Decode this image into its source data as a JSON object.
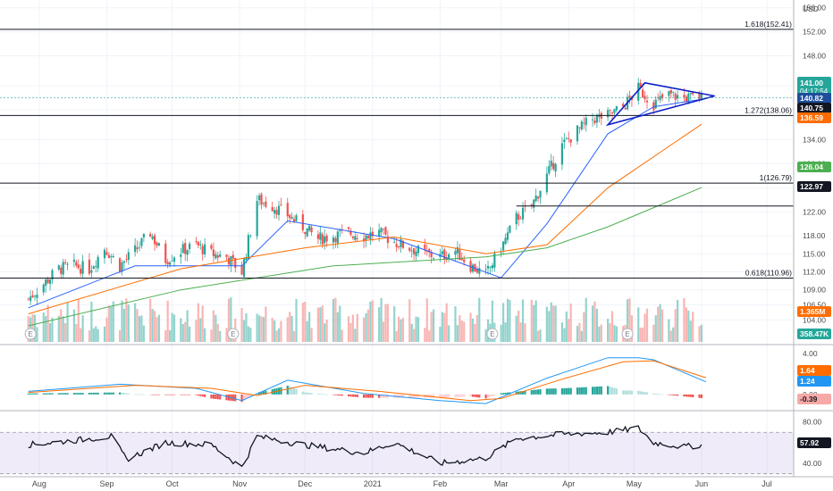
{
  "chart_data": [
    {
      "type": "candlestick",
      "panel": "price",
      "currency": "USD",
      "yaxis_ticks": [
        156.0,
        152.0,
        148.0,
        143.0,
        139.0,
        134.0,
        130.0,
        126.0,
        122.0,
        118.0,
        115.0,
        112.0,
        109.0,
        106.5,
        104.0
      ],
      "ylim": [
        103.0,
        157.0
      ],
      "xaxis_ticks": [
        "Aug",
        "Sep",
        "Oct",
        "Nov",
        "Dec",
        "2021",
        "Feb",
        "Mar",
        "Apr",
        "May",
        "Jun",
        "Jul"
      ],
      "close_path": [
        [
          "2020-07-27",
          107.5
        ],
        [
          "2020-08-03",
          110.0
        ],
        [
          "2020-08-10",
          112.5
        ],
        [
          "2020-08-17",
          113.0
        ],
        [
          "2020-08-24",
          112.5
        ],
        [
          "2020-08-31",
          116.0
        ],
        [
          "2020-09-07",
          113.0
        ],
        [
          "2020-09-14",
          115.5
        ],
        [
          "2020-09-21",
          118.5
        ],
        [
          "2020-09-28",
          114.0
        ],
        [
          "2020-10-05",
          115.5
        ],
        [
          "2020-10-12",
          116.5
        ],
        [
          "2020-10-19",
          115.0
        ],
        [
          "2020-10-26",
          114.5
        ],
        [
          "2020-11-02",
          112.0
        ],
        [
          "2020-11-09",
          124.0
        ],
        [
          "2020-11-16",
          123.0
        ],
        [
          "2020-11-23",
          121.5
        ],
        [
          "2020-11-30",
          119.5
        ],
        [
          "2020-12-07",
          117.5
        ],
        [
          "2020-12-14",
          118.0
        ],
        [
          "2020-12-21",
          118.5
        ],
        [
          "2020-12-28",
          118.0
        ],
        [
          "2021-01-04",
          118.5
        ],
        [
          "2021-01-11",
          117.0
        ],
        [
          "2021-01-18",
          116.0
        ],
        [
          "2021-01-25",
          115.0
        ],
        [
          "2021-02-01",
          114.5
        ],
        [
          "2021-02-08",
          115.5
        ],
        [
          "2021-02-15",
          113.0
        ],
        [
          "2021-02-22",
          111.5
        ],
        [
          "2021-03-01",
          116.0
        ],
        [
          "2021-03-08",
          121.0
        ],
        [
          "2021-03-15",
          123.0
        ],
        [
          "2021-03-22",
          128.0
        ],
        [
          "2021-03-29",
          133.0
        ],
        [
          "2021-04-05",
          135.5
        ],
        [
          "2021-04-12",
          137.5
        ],
        [
          "2021-04-19",
          138.0
        ],
        [
          "2021-04-26",
          139.5
        ],
        [
          "2021-05-03",
          142.5
        ],
        [
          "2021-05-10",
          140.0
        ],
        [
          "2021-05-17",
          141.5
        ],
        [
          "2021-05-24",
          141.0
        ],
        [
          "2021-06-01",
          141.0
        ]
      ],
      "moving_averages": [
        {
          "color": "#2962ff",
          "values": [
            [
              "2020-07-27",
              106.0
            ],
            [
              "2020-09-14",
              113.0
            ],
            [
              "2020-11-02",
              113.0
            ],
            [
              "2020-11-23",
              120.5
            ],
            [
              "2021-01-11",
              117.5
            ],
            [
              "2021-03-01",
              111.0
            ],
            [
              "2021-03-22",
              120.0
            ],
            [
              "2021-04-19",
              135.0
            ],
            [
              "2021-05-10",
              139.5
            ],
            [
              "2021-06-01",
              140.75
            ]
          ]
        },
        {
          "color": "#ff6d00",
          "values": [
            [
              "2020-07-27",
              105.0
            ],
            [
              "2020-10-05",
              112.5
            ],
            [
              "2020-12-01",
              116.0
            ],
            [
              "2021-01-11",
              117.8
            ],
            [
              "2021-02-22",
              115.0
            ],
            [
              "2021-03-22",
              116.5
            ],
            [
              "2021-04-19",
              126.0
            ],
            [
              "2021-06-01",
              136.59
            ]
          ]
        },
        {
          "color": "#4caf50",
          "values": [
            [
              "2020-07-27",
              103.0
            ],
            [
              "2020-10-05",
              109.0
            ],
            [
              "2020-12-14",
              113.0
            ],
            [
              "2021-02-22",
              114.5
            ],
            [
              "2021-03-22",
              116.0
            ],
            [
              "2021-04-19",
              119.5
            ],
            [
              "2021-06-01",
              126.04
            ]
          ]
        }
      ],
      "horizontal_levels": [
        {
          "label": "1.618(152.41)",
          "value": 152.41
        },
        {
          "label": "1.272(138.06)",
          "value": 138.06
        },
        {
          "label": "1(126.79)",
          "value": 126.79
        },
        {
          "label": "0.618(110.96)",
          "value": 110.96
        },
        {
          "label": "",
          "value": 122.97
        }
      ],
      "triangle_pattern": {
        "color": "#1020c8",
        "points": [
          [
            "2021-05-06",
            143.5
          ],
          [
            "2021-06-07",
            141.3
          ],
          [
            "2021-04-19",
            136.5
          ]
        ]
      },
      "earnings_markers": [
        "2020-07-28",
        "2020-10-29",
        "2021-02-25",
        "2021-04-28"
      ],
      "price_badges": [
        {
          "value": "141.00",
          "sub": "04:17:54",
          "color": "#26a69a"
        },
        {
          "value": "140.82",
          "color": "#1f4e9c"
        },
        {
          "value": "140.75",
          "color": "#131722"
        },
        {
          "value": "136.59",
          "color": "#ff6d00"
        },
        {
          "value": "126.04",
          "color": "#4caf50"
        },
        {
          "value": "122.97",
          "color": "#131722"
        }
      ],
      "volume": {
        "badges": [
          {
            "value": "1.365M",
            "color": "#ff6d00"
          },
          {
            "value": "358.47K",
            "color": "#26a69a"
          }
        ],
        "up_color": "#80cbc4",
        "down_color": "#f7a9a7"
      }
    },
    {
      "type": "macd",
      "panel": "macd",
      "yaxis_ticks": [
        4.0,
        2.0,
        0.0
      ],
      "ylim": [
        -1.5,
        4.8
      ],
      "macd_line_color": "#2196f3",
      "signal_line_color": "#ff6d00",
      "macd_points": [
        [
          "2020-07-27",
          0.3
        ],
        [
          "2020-09-07",
          1.0
        ],
        [
          "2020-10-12",
          0.6
        ],
        [
          "2020-11-02",
          -0.6
        ],
        [
          "2020-11-23",
          1.4
        ],
        [
          "2020-12-28",
          0.1
        ],
        [
          "2021-02-01",
          -0.6
        ],
        [
          "2021-02-22",
          -0.9
        ],
        [
          "2021-03-22",
          1.6
        ],
        [
          "2021-04-19",
          3.6
        ],
        [
          "2021-05-03",
          3.6
        ],
        [
          "2021-05-10",
          3.4
        ],
        [
          "2021-06-03",
          1.24
        ]
      ],
      "signal_points": [
        [
          "2020-07-27",
          0.2
        ],
        [
          "2020-09-14",
          0.9
        ],
        [
          "2020-10-19",
          0.6
        ],
        [
          "2020-11-09",
          -0.1
        ],
        [
          "2020-12-01",
          0.9
        ],
        [
          "2021-01-04",
          0.3
        ],
        [
          "2021-02-15",
          -0.6
        ],
        [
          "2021-03-01",
          -0.4
        ],
        [
          "2021-03-29",
          1.5
        ],
        [
          "2021-04-26",
          3.2
        ],
        [
          "2021-05-10",
          3.3
        ],
        [
          "2021-06-03",
          1.64
        ]
      ],
      "badges": [
        {
          "value": "1.64",
          "color": "#ff6d00"
        },
        {
          "value": "1.24",
          "color": "#2196f3"
        },
        {
          "value": "-0.39",
          "color": "#f7a9a7",
          "text_color": "#131722"
        }
      ]
    },
    {
      "type": "line",
      "panel": "rsi",
      "yaxis_ticks": [
        80.0,
        40.0
      ],
      "ylim": [
        28,
        90
      ],
      "band": [
        30,
        70
      ],
      "band_color": "#7e57c2",
      "points": [
        [
          "2020-07-27",
          58
        ],
        [
          "2020-08-17",
          62
        ],
        [
          "2020-09-03",
          66
        ],
        [
          "2020-09-10",
          44
        ],
        [
          "2020-09-28",
          60
        ],
        [
          "2020-10-19",
          58
        ],
        [
          "2020-11-02",
          36
        ],
        [
          "2020-11-09",
          66
        ],
        [
          "2020-11-30",
          58
        ],
        [
          "2020-12-28",
          50
        ],
        [
          "2021-01-11",
          60
        ],
        [
          "2021-02-01",
          40
        ],
        [
          "2021-02-22",
          45
        ],
        [
          "2021-03-08",
          64
        ],
        [
          "2021-03-29",
          68
        ],
        [
          "2021-04-19",
          70
        ],
        [
          "2021-05-03",
          74
        ],
        [
          "2021-05-10",
          60
        ],
        [
          "2021-05-24",
          56
        ],
        [
          "2021-06-03",
          57.92
        ]
      ],
      "badge": {
        "value": "57.92",
        "color": "#131722"
      }
    }
  ]
}
